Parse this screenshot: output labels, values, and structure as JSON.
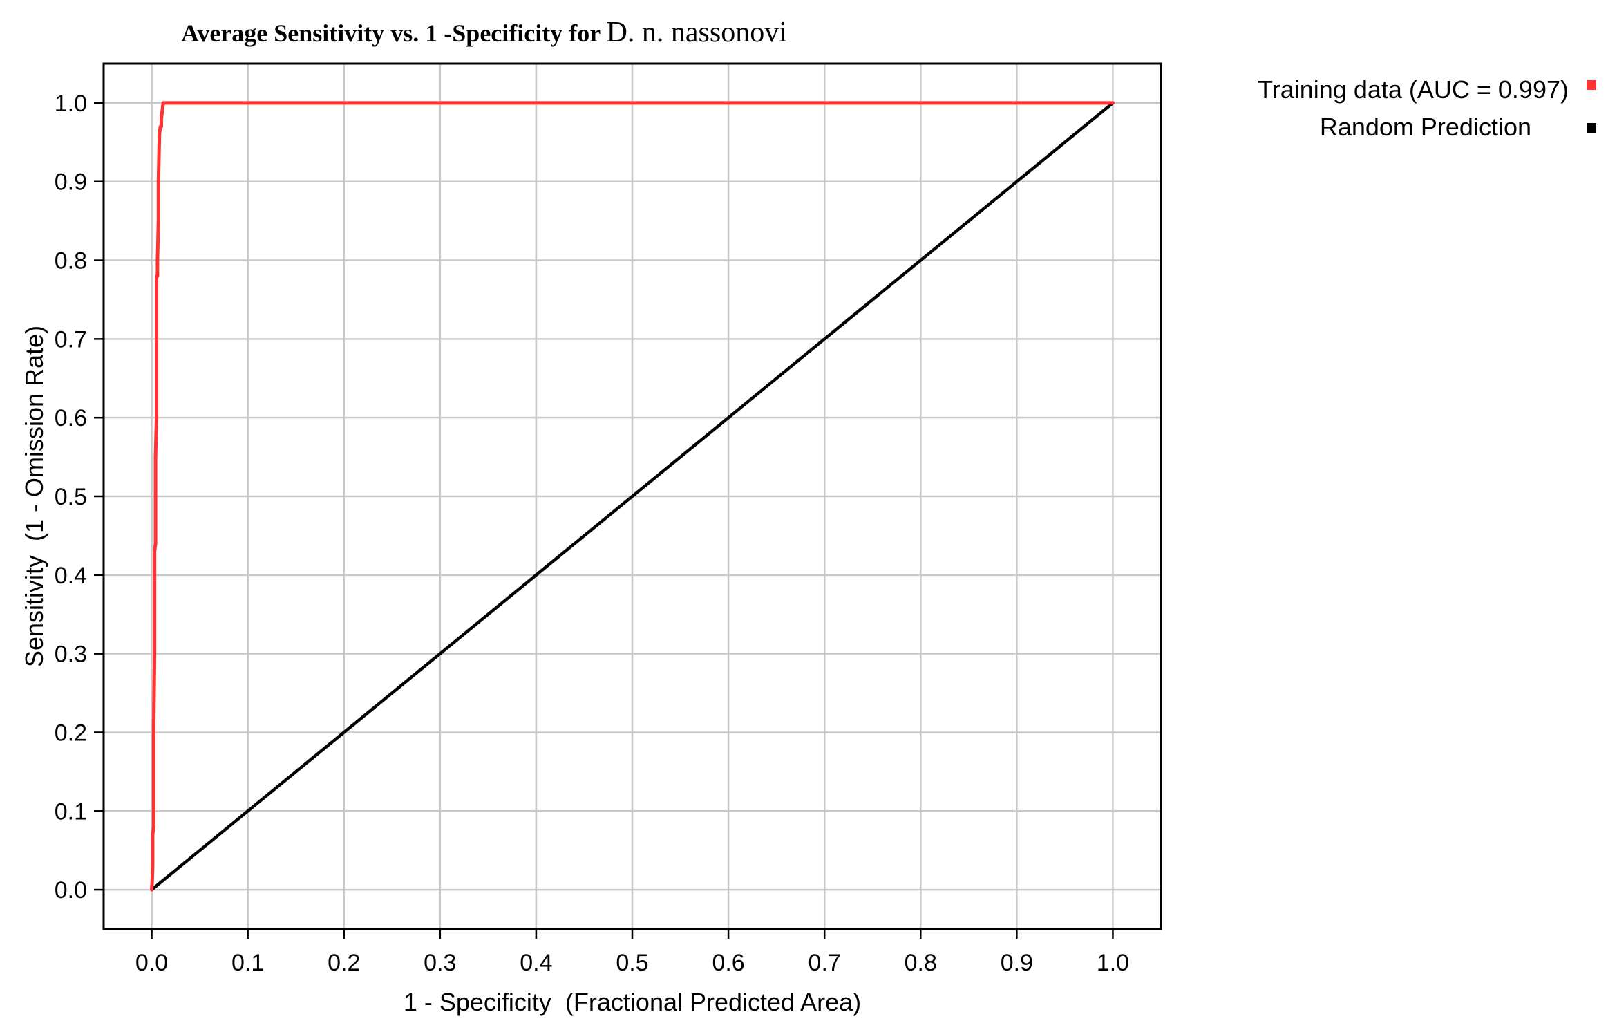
{
  "chart_data": {
    "type": "line",
    "title": {
      "prefix": "Average Sensitivity vs. 1 -Specificity for ",
      "species": "D. n. nassonovi"
    },
    "xlabel": "1 - Specificity  (Fractional Predicted Area)",
    "ylabel": "Sensitivity  (1 - Omission Rate)",
    "xlim": [
      -0.05,
      1.05
    ],
    "ylim": [
      -0.05,
      1.05
    ],
    "xticks": [
      "0.0",
      "0.1",
      "0.2",
      "0.3",
      "0.4",
      "0.5",
      "0.6",
      "0.7",
      "0.8",
      "0.9",
      "1.0"
    ],
    "yticks": [
      "0.0",
      "0.1",
      "0.2",
      "0.3",
      "0.4",
      "0.5",
      "0.6",
      "0.7",
      "0.8",
      "0.9",
      "1.0"
    ],
    "grid": true,
    "legend_position": "top-right-outside",
    "series": [
      {
        "name": "Training data (AUC = 0.997)",
        "color": "#ff3333",
        "x": [
          0.0,
          0.0005,
          0.001,
          0.001,
          0.002,
          0.002,
          0.003,
          0.003,
          0.004,
          0.004,
          0.005,
          0.005,
          0.006,
          0.006,
          0.007,
          0.007,
          0.008,
          0.009,
          0.01,
          0.01,
          0.011,
          0.012,
          0.015,
          0.05,
          0.2,
          0.4,
          0.6,
          0.8,
          1.0
        ],
        "y": [
          0.0,
          0.01,
          0.03,
          0.07,
          0.08,
          0.2,
          0.3,
          0.43,
          0.44,
          0.55,
          0.6,
          0.78,
          0.78,
          0.8,
          0.85,
          0.9,
          0.96,
          0.97,
          0.97,
          0.98,
          0.99,
          1.0,
          1.0,
          1.0,
          1.0,
          1.0,
          1.0,
          1.0,
          1.0
        ]
      },
      {
        "name": "Random Prediction",
        "color": "#000000",
        "x": [
          0.0,
          1.0
        ],
        "y": [
          0.0,
          1.0
        ]
      }
    ]
  }
}
